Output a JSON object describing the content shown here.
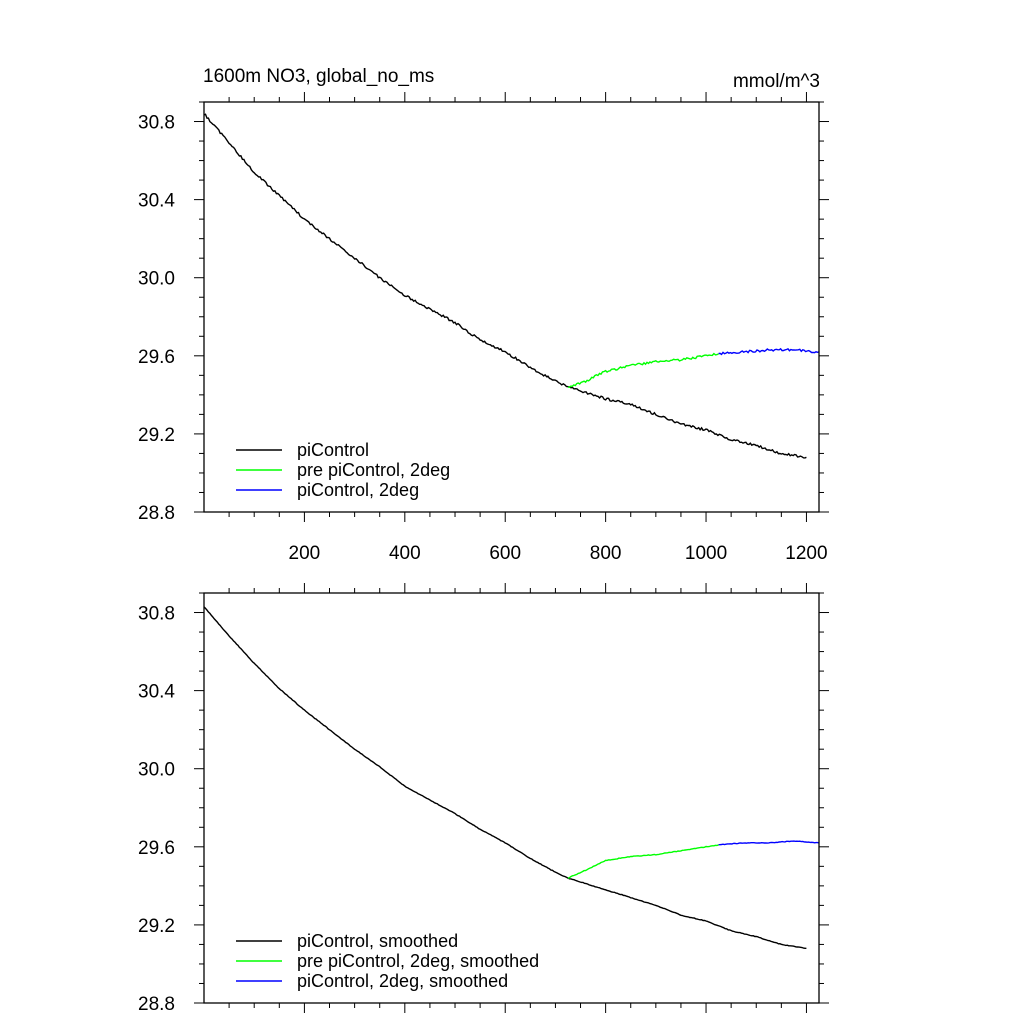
{
  "header": {
    "title": "1600m NO3, global_no_ms",
    "units": "mmol/m^3"
  },
  "colors": {
    "piControl": "#000000",
    "pre_piControl_2deg": "#00ff00",
    "piControl_2deg": "#0000ff"
  },
  "chart_data": [
    {
      "type": "line",
      "title": "1600m NO3, global_no_ms",
      "units": "mmol/m^3",
      "xlim": [
        0,
        1225
      ],
      "ylim": [
        28.8,
        30.9
      ],
      "xticks": [
        200,
        400,
        600,
        800,
        1000,
        1200
      ],
      "xtick_labels": [
        "200",
        "400",
        "600",
        "800",
        "1000",
        "1200"
      ],
      "yticks": [
        28.8,
        29.2,
        29.6,
        30.0,
        30.4,
        30.8
      ],
      "ytick_labels": [
        "28.8",
        "29.2",
        "29.6",
        "30.0",
        "30.4",
        "30.8"
      ],
      "legend_position": "bottom-left",
      "series": [
        {
          "name": "piControl",
          "color": "#000000",
          "points": [
            [
              0,
              30.84
            ],
            [
              50,
              30.69
            ],
            [
              100,
              30.54
            ],
            [
              150,
              30.42
            ],
            [
              200,
              30.3
            ],
            [
              250,
              30.2
            ],
            [
              300,
              30.1
            ],
            [
              350,
              30.0
            ],
            [
              400,
              29.91
            ],
            [
              450,
              29.84
            ],
            [
              500,
              29.77
            ],
            [
              550,
              29.68
            ],
            [
              600,
              29.62
            ],
            [
              650,
              29.54
            ],
            [
              700,
              29.47
            ],
            [
              725,
              29.44
            ],
            [
              800,
              29.38
            ],
            [
              850,
              29.35
            ],
            [
              900,
              29.3
            ],
            [
              950,
              29.25
            ],
            [
              1000,
              29.22
            ],
            [
              1050,
              29.17
            ],
            [
              1100,
              29.14
            ],
            [
              1150,
              29.1
            ],
            [
              1200,
              29.08
            ]
          ]
        },
        {
          "name": "pre piControl, 2deg",
          "color": "#00ff00",
          "points": [
            [
              725,
              29.44
            ],
            [
              760,
              29.47
            ],
            [
              800,
              29.52
            ],
            [
              850,
              29.55
            ],
            [
              900,
              29.57
            ],
            [
              950,
              29.58
            ],
            [
              1000,
              29.6
            ],
            [
              1025,
              29.61
            ]
          ]
        },
        {
          "name": "piControl, 2deg",
          "color": "#0000ff",
          "points": [
            [
              1025,
              29.61
            ],
            [
              1075,
              29.62
            ],
            [
              1125,
              29.63
            ],
            [
              1175,
              29.63
            ],
            [
              1225,
              29.62
            ]
          ]
        }
      ]
    },
    {
      "type": "line",
      "xlim": [
        0,
        1225
      ],
      "ylim": [
        28.8,
        30.9
      ],
      "xticks": [
        200,
        400,
        600,
        800,
        1000,
        1200
      ],
      "yticks": [
        28.8,
        29.2,
        29.6,
        30.0,
        30.4,
        30.8
      ],
      "ytick_labels": [
        "28.8",
        "29.2",
        "29.6",
        "30.0",
        "30.4",
        "30.8"
      ],
      "legend_position": "bottom-left",
      "series": [
        {
          "name": "piControl, smoothed",
          "color": "#000000",
          "points": [
            [
              0,
              30.83
            ],
            [
              50,
              30.68
            ],
            [
              100,
              30.54
            ],
            [
              150,
              30.41
            ],
            [
              200,
              30.3
            ],
            [
              250,
              30.2
            ],
            [
              300,
              30.1
            ],
            [
              350,
              30.01
            ],
            [
              400,
              29.91
            ],
            [
              450,
              29.84
            ],
            [
              500,
              29.77
            ],
            [
              550,
              29.69
            ],
            [
              600,
              29.62
            ],
            [
              650,
              29.54
            ],
            [
              700,
              29.47
            ],
            [
              725,
              29.44
            ],
            [
              800,
              29.38
            ],
            [
              850,
              29.34
            ],
            [
              900,
              29.3
            ],
            [
              950,
              29.25
            ],
            [
              1000,
              29.22
            ],
            [
              1050,
              29.17
            ],
            [
              1100,
              29.14
            ],
            [
              1150,
              29.1
            ],
            [
              1200,
              29.08
            ]
          ]
        },
        {
          "name": "pre piControl, 2deg, smoothed",
          "color": "#00ff00",
          "points": [
            [
              725,
              29.44
            ],
            [
              760,
              29.48
            ],
            [
              800,
              29.53
            ],
            [
              850,
              29.55
            ],
            [
              900,
              29.56
            ],
            [
              950,
              29.58
            ],
            [
              1000,
              29.6
            ],
            [
              1025,
              29.61
            ]
          ]
        },
        {
          "name": "piControl, 2deg, smoothed",
          "color": "#0000ff",
          "points": [
            [
              1025,
              29.61
            ],
            [
              1075,
              29.62
            ],
            [
              1125,
              29.62
            ],
            [
              1175,
              29.63
            ],
            [
              1225,
              29.62
            ]
          ]
        }
      ]
    }
  ]
}
